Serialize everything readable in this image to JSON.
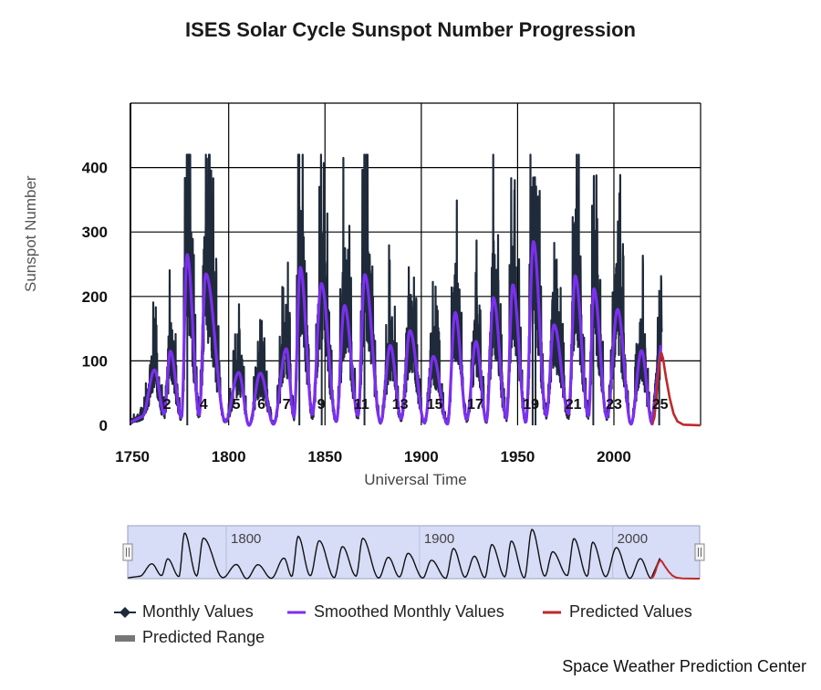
{
  "page": {
    "title": "ISES Solar Cycle Sunspot Number Progression",
    "credit": "Space Weather Prediction Center"
  },
  "colors": {
    "monthly": "#1f2a3a",
    "smoothed": "#7b2ff0",
    "predicted": "#c0282a",
    "range": "#777777",
    "navigator_fill": "#d7dcf7",
    "grid": "#000000"
  },
  "legend": {
    "monthly": "Monthly Values",
    "smoothed": "Smoothed Monthly Values",
    "predicted": "Predicted Values",
    "range": "Predicted Range"
  },
  "chart_data": {
    "type": "line",
    "title": "ISES Solar Cycle Sunspot Number Progression",
    "xlabel": "Universal Time",
    "ylabel": "Sunspot Number",
    "xlim": [
      1749,
      2045
    ],
    "ylim": [
      0,
      500
    ],
    "x_ticks": [
      "1750",
      "1800",
      "1850",
      "1900",
      "1950",
      "2000"
    ],
    "y_ticks": [
      "0",
      "100",
      "200",
      "300",
      "400"
    ],
    "grid": true,
    "legend_position": "bottom",
    "cycle_labels": [
      "2",
      "4",
      "5",
      "6",
      "7",
      "9",
      "11",
      "13",
      "15",
      "17",
      "19",
      "21",
      "23",
      "25"
    ],
    "cycle_label_years": [
      1768,
      1787,
      1804,
      1817,
      1830,
      1848,
      1869,
      1889,
      1907,
      1928,
      1957,
      1979,
      2000,
      2024
    ],
    "smoothed_maxima": [
      {
        "year": 1761.5,
        "value": 86
      },
      {
        "year": 1769.7,
        "value": 115
      },
      {
        "year": 1778.4,
        "value": 265
      },
      {
        "year": 1788.1,
        "value": 235
      },
      {
        "year": 1805.2,
        "value": 82
      },
      {
        "year": 1816.4,
        "value": 81
      },
      {
        "year": 1829.9,
        "value": 119
      },
      {
        "year": 1837.2,
        "value": 245
      },
      {
        "year": 1848.1,
        "value": 220
      },
      {
        "year": 1860.1,
        "value": 186
      },
      {
        "year": 1870.6,
        "value": 234
      },
      {
        "year": 1883.9,
        "value": 124
      },
      {
        "year": 1894.1,
        "value": 147
      },
      {
        "year": 1906.2,
        "value": 107
      },
      {
        "year": 1917.6,
        "value": 175
      },
      {
        "year": 1928.4,
        "value": 130
      },
      {
        "year": 1937.4,
        "value": 198
      },
      {
        "year": 1947.5,
        "value": 218
      },
      {
        "year": 1958.2,
        "value": 285
      },
      {
        "year": 1968.9,
        "value": 156
      },
      {
        "year": 1979.9,
        "value": 232
      },
      {
        "year": 1989.6,
        "value": 212
      },
      {
        "year": 2001.9,
        "value": 180
      },
      {
        "year": 2014.3,
        "value": 116
      },
      {
        "year": 2024.7,
        "value": 112
      }
    ],
    "smoothed_minima": [
      {
        "year": 1755.2,
        "value": 14
      },
      {
        "year": 1766.5,
        "value": 18
      },
      {
        "year": 1775.5,
        "value": 12
      },
      {
        "year": 1784.7,
        "value": 16
      },
      {
        "year": 1798.3,
        "value": 6
      },
      {
        "year": 1810.6,
        "value": 0
      },
      {
        "year": 1823.3,
        "value": 2
      },
      {
        "year": 1833.9,
        "value": 13
      },
      {
        "year": 1843.5,
        "value": 17
      },
      {
        "year": 1855.9,
        "value": 6
      },
      {
        "year": 1867.2,
        "value": 15
      },
      {
        "year": 1878.9,
        "value": 4
      },
      {
        "year": 1889.6,
        "value": 10
      },
      {
        "year": 1901.7,
        "value": 4
      },
      {
        "year": 1913.6,
        "value": 2
      },
      {
        "year": 1923.6,
        "value": 9
      },
      {
        "year": 1933.8,
        "value": 6
      },
      {
        "year": 1944.2,
        "value": 11
      },
      {
        "year": 1954.3,
        "value": 5
      },
      {
        "year": 1964.9,
        "value": 15
      },
      {
        "year": 1976.5,
        "value": 18
      },
      {
        "year": 1986.8,
        "value": 14
      },
      {
        "year": 1996.4,
        "value": 12
      },
      {
        "year": 2008.9,
        "value": 2
      },
      {
        "year": 2019.9,
        "value": 2
      }
    ],
    "monthly_peak_factor": 1.3,
    "predicted": [
      {
        "year": 2019.9,
        "value": 2
      },
      {
        "year": 2021,
        "value": 12
      },
      {
        "year": 2022,
        "value": 40
      },
      {
        "year": 2023,
        "value": 78
      },
      {
        "year": 2024,
        "value": 104
      },
      {
        "year": 2024.7,
        "value": 112
      },
      {
        "year": 2025.5,
        "value": 104
      },
      {
        "year": 2027,
        "value": 75
      },
      {
        "year": 2029,
        "value": 42
      },
      {
        "year": 2031,
        "value": 18
      },
      {
        "year": 2033,
        "value": 6
      },
      {
        "year": 2036,
        "value": 1
      },
      {
        "year": 2045,
        "value": 0
      }
    ],
    "series": [
      {
        "name": "Monthly Values"
      },
      {
        "name": "Smoothed Monthly Values"
      },
      {
        "name": "Predicted Values"
      },
      {
        "name": "Predicted Range"
      }
    ]
  },
  "navigator": {
    "labels": [
      "1800",
      "1900",
      "2000"
    ],
    "label_years": [
      1800,
      1900,
      2000
    ]
  }
}
